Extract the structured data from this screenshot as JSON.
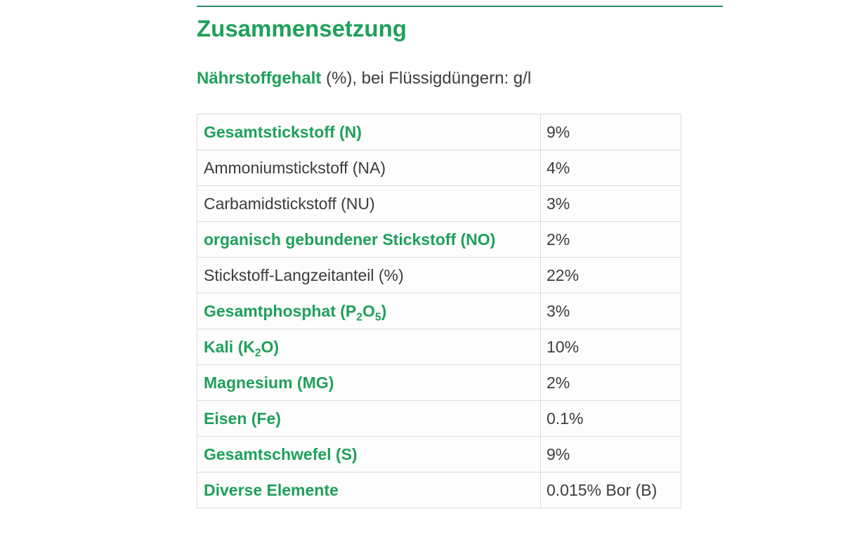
{
  "colors": {
    "accent_green": "#1fa05a",
    "rule_green": "#2e8b6a",
    "text_dark": "#3c3c3b",
    "border": "#dcdcdc"
  },
  "page": {
    "title": "Zusammensetzung",
    "subtitle_lead": "Nährstoffgehalt",
    "subtitle_rest": " (%), bei Flüssigdüngern: g/l"
  },
  "table": {
    "rows": [
      {
        "label": "Gesamtstickstoff (N)",
        "emphasis": true,
        "value": "9%"
      },
      {
        "label": "Ammoniumstickstoff (NA)",
        "emphasis": false,
        "value": "4%"
      },
      {
        "label": "Carbamidstickstoff (NU)",
        "emphasis": false,
        "value": "3%"
      },
      {
        "label": "organisch gebundener Stickstoff (NO)",
        "emphasis": true,
        "value": "2%"
      },
      {
        "label": "Stickstoff-Langzeitanteil (%)",
        "emphasis": false,
        "value": "22%"
      },
      {
        "label_parts": [
          {
            "t": "Gesamtphosphat (P"
          },
          {
            "t": "2",
            "sub": true
          },
          {
            "t": "O"
          },
          {
            "t": "5",
            "sub": true
          },
          {
            "t": ")"
          }
        ],
        "emphasis": true,
        "value": "3%"
      },
      {
        "label_parts": [
          {
            "t": "Kali (K"
          },
          {
            "t": "2",
            "sub": true
          },
          {
            "t": "O)"
          }
        ],
        "emphasis": true,
        "value": "10%"
      },
      {
        "label": "Magnesium (MG)",
        "emphasis": true,
        "value": "2%"
      },
      {
        "label": "Eisen (Fe)",
        "emphasis": true,
        "value": "0.1%"
      },
      {
        "label": "Gesamtschwefel (S)",
        "emphasis": true,
        "value": "9%"
      },
      {
        "label": "Diverse Elemente",
        "emphasis": true,
        "value": "0.015% Bor (B)"
      }
    ]
  }
}
